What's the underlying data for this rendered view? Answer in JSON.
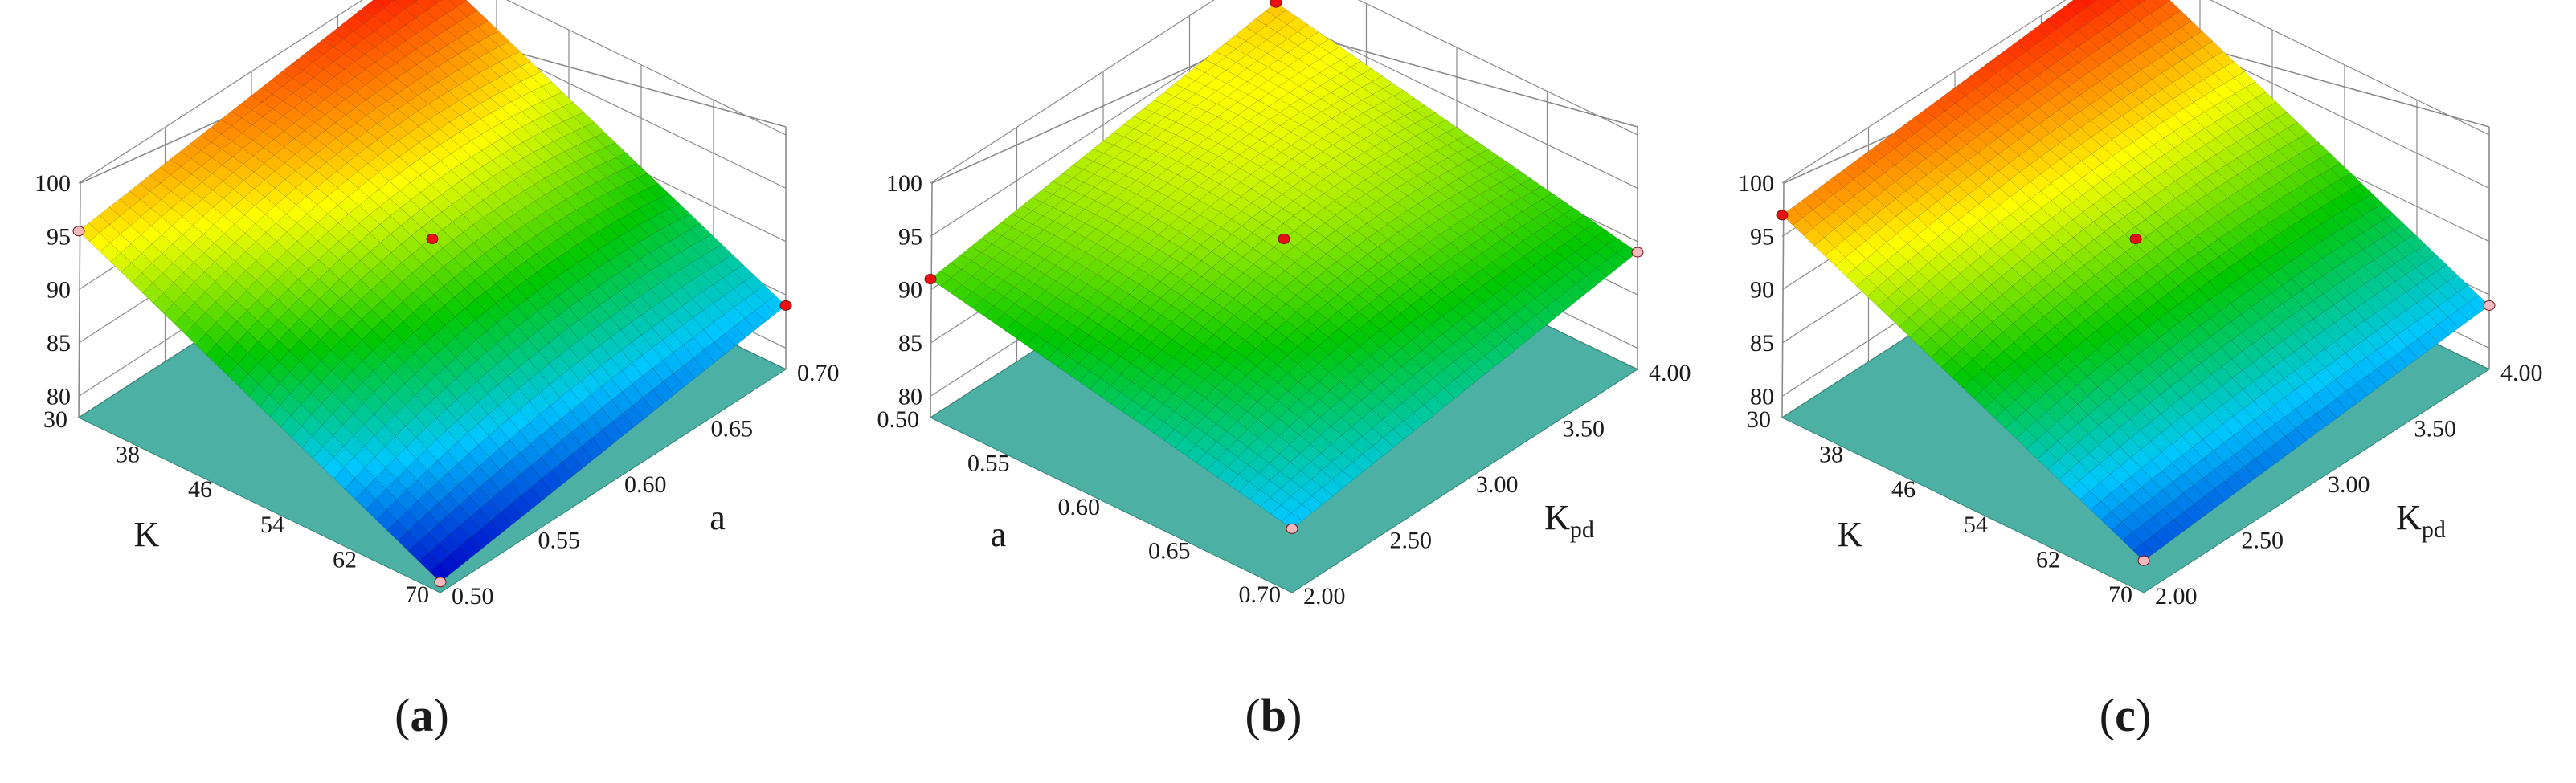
{
  "chart_data": [
    {
      "type": "surface3d",
      "panel_label": "(a)",
      "z_ticks": [
        "80",
        "85",
        "90",
        "95",
        "100"
      ],
      "z_range": [
        78,
        100
      ],
      "x_var": "K",
      "x_ticks": [
        "30",
        "38",
        "46",
        "54",
        "62",
        "70"
      ],
      "x_range": [
        30,
        70
      ],
      "y_var": "a",
      "y_ticks": [
        "0.50",
        "0.55",
        "0.60",
        "0.65",
        "0.70"
      ],
      "y_range": [
        0.5,
        0.7
      ],
      "corner_z": {
        "x_min_y_min": 95.5,
        "x_min_y_max": 100,
        "x_max_y_max": 84,
        "x_max_y_min": 79
      },
      "curvature": 6,
      "design_points": [
        {
          "x": 30,
          "y": 0.7,
          "z": 100,
          "marker": "red"
        },
        {
          "x": 30,
          "y": 0.5,
          "z": 95.5,
          "marker": "pink"
        },
        {
          "x": 70,
          "y": 0.7,
          "z": 84,
          "marker": "red"
        },
        {
          "x": 70,
          "y": 0.5,
          "z": 79,
          "marker": "pink"
        },
        {
          "x": 50,
          "y": 0.6,
          "z": 92.5,
          "marker": "red"
        }
      ]
    },
    {
      "type": "surface3d",
      "panel_label": "(b)",
      "z_ticks": [
        "80",
        "85",
        "90",
        "95",
        "100"
      ],
      "z_range": [
        78,
        100
      ],
      "x_var": "a",
      "x_ticks": [
        "0.50",
        "0.55",
        "0.60",
        "0.65",
        "0.70"
      ],
      "x_range": [
        0.5,
        0.7
      ],
      "y_var": "K",
      "y_var_sub": "pd",
      "y_ticks": [
        "2.00",
        "2.50",
        "3.00",
        "3.50",
        "4.00"
      ],
      "y_range": [
        2,
        4
      ],
      "corner_z": {
        "x_min_y_min": 91,
        "x_min_y_max": 96,
        "x_max_y_max": 89,
        "x_max_y_min": 84
      },
      "curvature": 5,
      "design_points": [
        {
          "x": 0.5,
          "y": 4.0,
          "z": 96,
          "marker": "red"
        },
        {
          "x": 0.5,
          "y": 2.0,
          "z": 91,
          "marker": "red"
        },
        {
          "x": 0.7,
          "y": 4.0,
          "z": 89,
          "marker": "pink"
        },
        {
          "x": 0.7,
          "y": 2.0,
          "z": 84,
          "marker": "pink"
        },
        {
          "x": 0.6,
          "y": 3.0,
          "z": 92.5,
          "marker": "red"
        }
      ]
    },
    {
      "type": "surface3d",
      "panel_label": "(c)",
      "z_ticks": [
        "80",
        "85",
        "90",
        "95",
        "100"
      ],
      "z_range": [
        78,
        100
      ],
      "x_var": "K",
      "x_ticks": [
        "30",
        "38",
        "46",
        "54",
        "62",
        "70"
      ],
      "x_range": [
        30,
        70
      ],
      "y_var": "K",
      "y_var_sub": "pd",
      "y_ticks": [
        "2.00",
        "2.50",
        "3.00",
        "3.50",
        "4.00"
      ],
      "y_range": [
        2,
        4
      ],
      "corner_z": {
        "x_min_y_min": 97,
        "x_min_y_max": 100,
        "x_max_y_max": 84,
        "x_max_y_min": 81
      },
      "curvature": 3,
      "design_points": [
        {
          "x": 30,
          "y": 4.0,
          "z": 100,
          "marker": "red"
        },
        {
          "x": 30,
          "y": 2.0,
          "z": 97,
          "marker": "red"
        },
        {
          "x": 70,
          "y": 4.0,
          "z": 84,
          "marker": "pink"
        },
        {
          "x": 70,
          "y": 2.0,
          "z": 81,
          "marker": "pink"
        },
        {
          "x": 50,
          "y": 3.0,
          "z": 92.5,
          "marker": "red"
        }
      ]
    }
  ],
  "colors": {
    "colormap": [
      "#0000c8",
      "#00c8ff",
      "#00c800",
      "#ffff00",
      "#ff0000"
    ],
    "floor": "#4cb0a4",
    "floor_edge": "#2f8478",
    "grid": "#8a8a8a",
    "design_point_red": "#e81010",
    "design_point_pink": "#f2b8c0"
  }
}
